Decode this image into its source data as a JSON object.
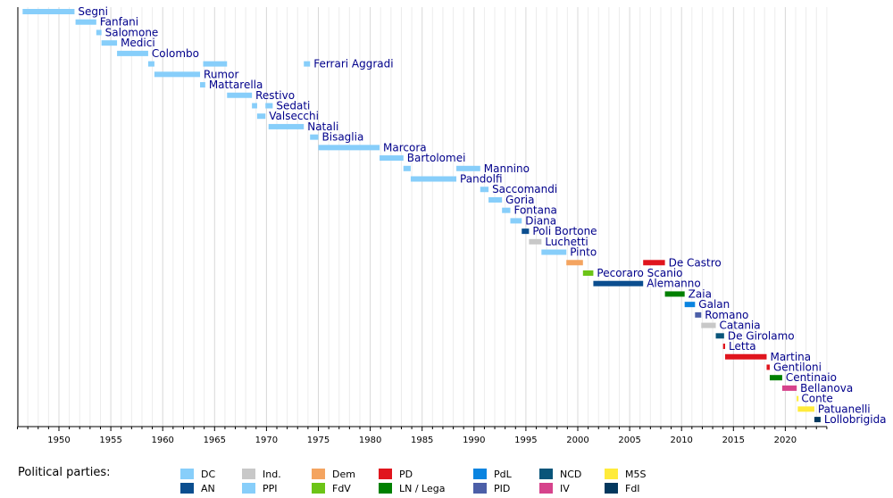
{
  "chart_data": {
    "type": "timeline",
    "xlim": [
      1946,
      2024
    ],
    "xticks": [
      1950,
      1955,
      1960,
      1965,
      1970,
      1975,
      1980,
      1985,
      1990,
      1995,
      2000,
      2005,
      2010,
      2015,
      2020
    ],
    "grid": "vertical-yearly",
    "legend_title": "Political parties:",
    "legend_placement": "bottom",
    "parties": [
      {
        "code": "DC",
        "label": "DC",
        "color": "#87cefa"
      },
      {
        "code": "AN",
        "label": "AN",
        "color": "#0b4e8f"
      },
      {
        "code": "Ind",
        "label": "Ind.",
        "color": "#c8c8c8"
      },
      {
        "code": "PPI",
        "label": "PPI",
        "color": "#87cefa"
      },
      {
        "code": "Dem",
        "label": "Dem",
        "color": "#f4a460"
      },
      {
        "code": "FdV",
        "label": "FdV",
        "color": "#6cc417"
      },
      {
        "code": "PD",
        "label": "PD",
        "color": "#e0151d"
      },
      {
        "code": "LN",
        "label": "LN / Lega",
        "color": "#008000"
      },
      {
        "code": "PdL",
        "label": "PdL",
        "color": "#0a84e0"
      },
      {
        "code": "PID",
        "label": "PID",
        "color": "#4c5fa8"
      },
      {
        "code": "NCD",
        "label": "NCD",
        "color": "#09557a"
      },
      {
        "code": "IV",
        "label": "IV",
        "color": "#d6438c"
      },
      {
        "code": "M5S",
        "label": "M5S",
        "color": "#ffeb3b"
      },
      {
        "code": "FdI",
        "label": "FdI",
        "color": "#03385e"
      }
    ],
    "ministers": [
      {
        "name": "Segni",
        "terms": [
          [
            1946.5,
            1951.5,
            "DC"
          ]
        ]
      },
      {
        "name": "Fanfani",
        "terms": [
          [
            1951.6,
            1953.6,
            "DC"
          ]
        ]
      },
      {
        "name": "Salomone",
        "terms": [
          [
            1953.6,
            1954.1,
            "DC"
          ]
        ]
      },
      {
        "name": "Medici",
        "terms": [
          [
            1954.1,
            1955.6,
            "DC"
          ]
        ]
      },
      {
        "name": "Colombo",
        "terms": [
          [
            1955.6,
            1958.6,
            "DC"
          ]
        ]
      },
      {
        "name": "Ferrari Aggradi",
        "terms": [
          [
            1958.6,
            1959.2,
            "DC"
          ],
          [
            1963.9,
            1966.2,
            "DC"
          ],
          [
            1973.6,
            1974.2,
            "DC"
          ]
        ]
      },
      {
        "name": "Rumor",
        "terms": [
          [
            1959.2,
            1963.6,
            "DC"
          ]
        ]
      },
      {
        "name": "Mattarella",
        "terms": [
          [
            1963.6,
            1964.1,
            "DC"
          ]
        ]
      },
      {
        "name": "Restivo",
        "terms": [
          [
            1966.2,
            1968.6,
            "DC"
          ]
        ]
      },
      {
        "name": "Sedati",
        "terms": [
          [
            1968.6,
            1969.1,
            "DC"
          ],
          [
            1969.9,
            1970.6,
            "DC"
          ]
        ]
      },
      {
        "name": "Valsecchi",
        "terms": [
          [
            1969.1,
            1969.9,
            "DC"
          ]
        ]
      },
      {
        "name": "Natali",
        "terms": [
          [
            1970.2,
            1973.6,
            "DC"
          ]
        ]
      },
      {
        "name": "Bisaglia",
        "terms": [
          [
            1974.2,
            1975.0,
            "DC"
          ]
        ]
      },
      {
        "name": "Marcora",
        "terms": [
          [
            1975.0,
            1980.9,
            "DC"
          ]
        ]
      },
      {
        "name": "Bartolomei",
        "terms": [
          [
            1980.9,
            1983.2,
            "DC"
          ]
        ]
      },
      {
        "name": "Mannino",
        "terms": [
          [
            1983.2,
            1983.9,
            "DC"
          ],
          [
            1988.3,
            1990.6,
            "DC"
          ]
        ]
      },
      {
        "name": "Pandolfi",
        "terms": [
          [
            1983.9,
            1988.3,
            "DC"
          ]
        ]
      },
      {
        "name": "Saccomandi",
        "terms": [
          [
            1990.6,
            1991.4,
            "DC"
          ]
        ]
      },
      {
        "name": "Goria",
        "terms": [
          [
            1991.4,
            1992.7,
            "DC"
          ]
        ]
      },
      {
        "name": "Fontana",
        "terms": [
          [
            1992.7,
            1993.5,
            "DC"
          ]
        ]
      },
      {
        "name": "Diana",
        "terms": [
          [
            1993.5,
            1994.6,
            "DC"
          ]
        ]
      },
      {
        "name": "Poli Bortone",
        "terms": [
          [
            1994.6,
            1995.3,
            "AN"
          ]
        ]
      },
      {
        "name": "Luchetti",
        "terms": [
          [
            1995.3,
            1996.5,
            "Ind"
          ]
        ]
      },
      {
        "name": "Pinto",
        "terms": [
          [
            1996.5,
            1998.9,
            "PPI"
          ]
        ]
      },
      {
        "name": "De Castro",
        "terms": [
          [
            1998.9,
            2000.5,
            "Dem"
          ],
          [
            2006.3,
            2008.4,
            "PD"
          ]
        ]
      },
      {
        "name": "Pecoraro Scanio",
        "terms": [
          [
            2000.5,
            2001.5,
            "FdV"
          ]
        ]
      },
      {
        "name": "Alemanno",
        "terms": [
          [
            2001.5,
            2006.3,
            "AN"
          ]
        ]
      },
      {
        "name": "Zaia",
        "terms": [
          [
            2008.4,
            2010.3,
            "LN"
          ]
        ]
      },
      {
        "name": "Galan",
        "terms": [
          [
            2010.3,
            2011.3,
            "PdL"
          ]
        ]
      },
      {
        "name": "Romano",
        "terms": [
          [
            2011.3,
            2011.9,
            "PID"
          ]
        ]
      },
      {
        "name": "Catania",
        "terms": [
          [
            2011.9,
            2013.3,
            "Ind"
          ]
        ]
      },
      {
        "name": "De Girolamo",
        "terms": [
          [
            2013.3,
            2014.1,
            "NCD"
          ]
        ]
      },
      {
        "name": "Letta",
        "terms": [
          [
            2014.0,
            2014.2,
            "PD"
          ]
        ]
      },
      {
        "name": "Martina",
        "terms": [
          [
            2014.2,
            2018.2,
            "PD"
          ]
        ]
      },
      {
        "name": "Gentiloni",
        "terms": [
          [
            2018.2,
            2018.5,
            "PD"
          ]
        ]
      },
      {
        "name": "Centinaio",
        "terms": [
          [
            2018.5,
            2019.7,
            "LN"
          ]
        ]
      },
      {
        "name": "Bellanova",
        "terms": [
          [
            2019.7,
            2021.1,
            "IV"
          ]
        ]
      },
      {
        "name": "Conte",
        "terms": [
          [
            2021.1,
            2021.2,
            "M5S"
          ]
        ]
      },
      {
        "name": "Patuanelli",
        "terms": [
          [
            2021.2,
            2022.8,
            "M5S"
          ]
        ]
      },
      {
        "name": "Lollobrigida",
        "terms": [
          [
            2022.8,
            2023.4,
            "FdI"
          ]
        ]
      }
    ]
  }
}
